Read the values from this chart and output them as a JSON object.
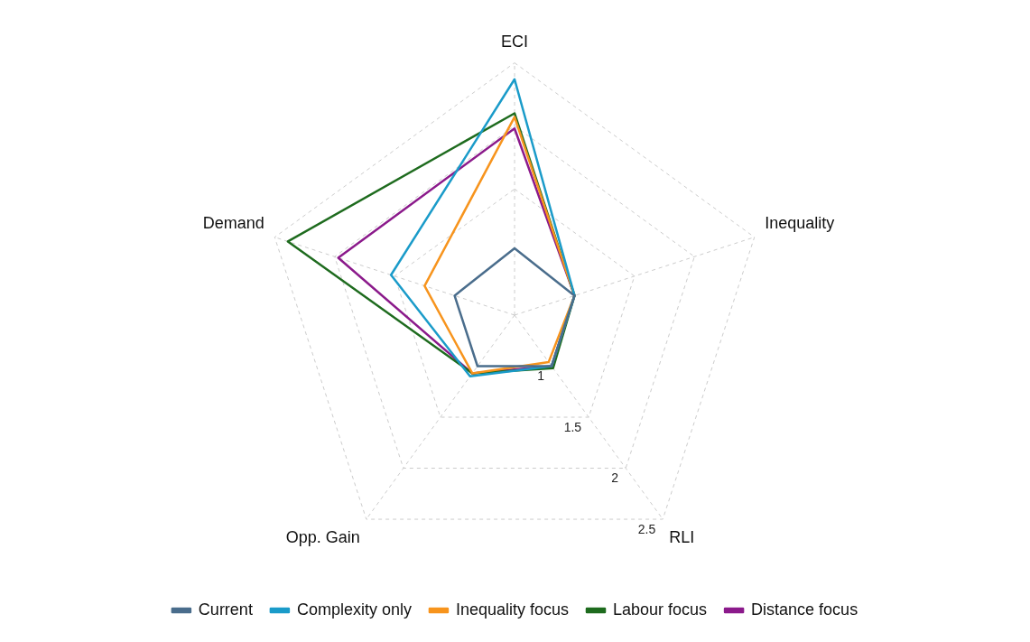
{
  "chart_data": {
    "type": "radar",
    "categories": [
      "ECI",
      "Inequality",
      "RLI",
      "Opp. Gain",
      "Demand"
    ],
    "ylim": [
      0.5,
      2.5
    ],
    "yticks": [
      1,
      1.5,
      2,
      2.5
    ],
    "grid": true,
    "legend": "bottom",
    "marker": "none",
    "line_style": "solid",
    "series": [
      {
        "name": "Current",
        "color": "#4a6d8c",
        "values": [
          1.03,
          1,
          1,
          1,
          1
        ]
      },
      {
        "name": "Complexity only",
        "color": "#1a9bc9",
        "values": [
          2.37,
          1,
          1,
          1.1,
          1.53
        ]
      },
      {
        "name": "Inequality focus",
        "color": "#f7941d",
        "values": [
          2.07,
          1,
          0.96,
          1.07,
          1.25
        ]
      },
      {
        "name": "Labour focus",
        "color": "#1e6b1e",
        "values": [
          2.1,
          1,
          1.02,
          1.07,
          2.39
        ]
      },
      {
        "name": "Distance focus",
        "color": "#8b1a8b",
        "values": [
          1.98,
          1,
          1,
          1.07,
          1.97
        ]
      }
    ]
  }
}
